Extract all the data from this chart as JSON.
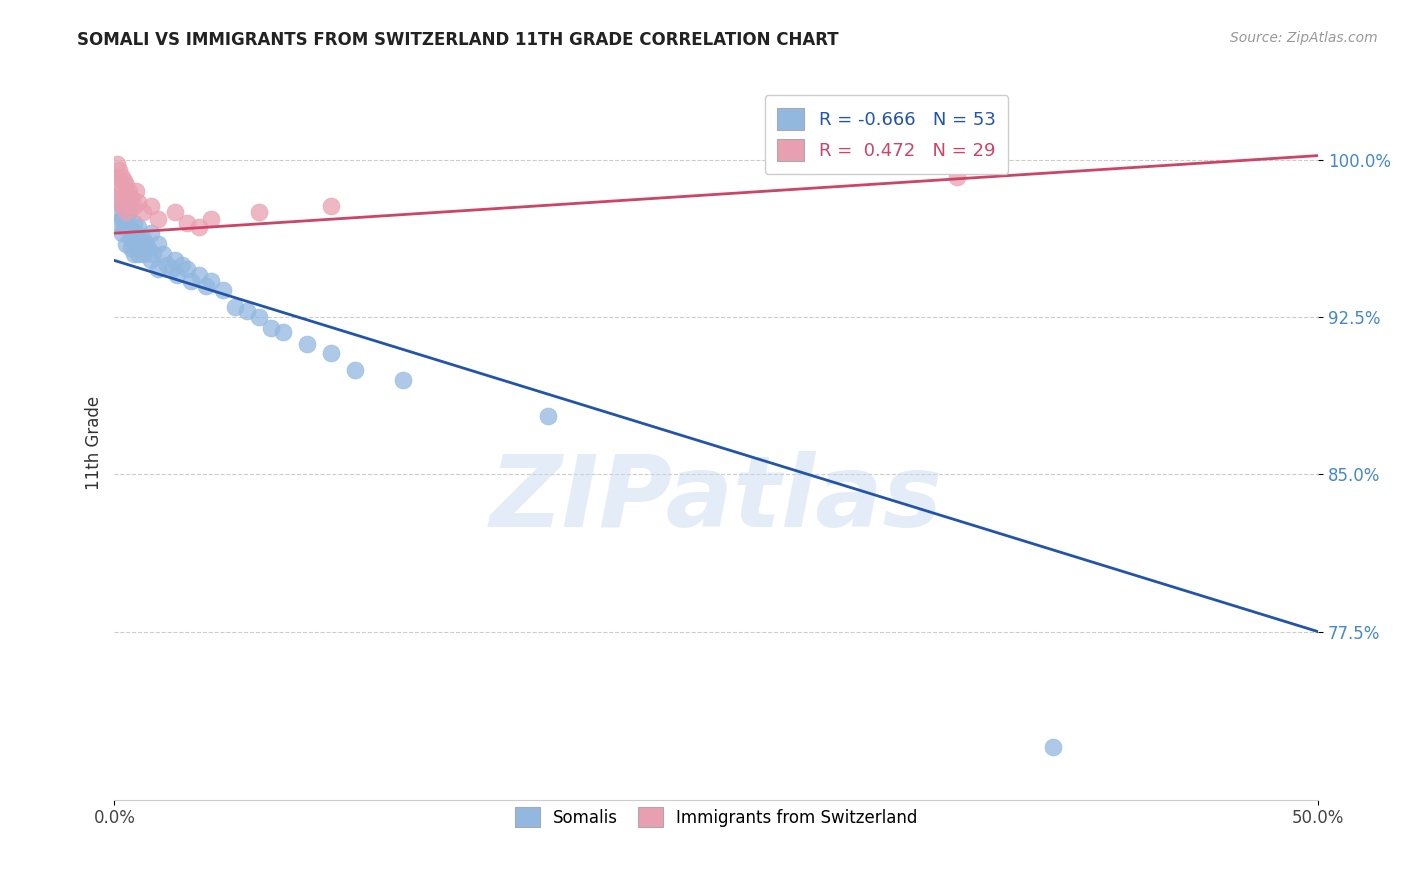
{
  "title": "SOMALI VS IMMIGRANTS FROM SWITZERLAND 11TH GRADE CORRELATION CHART",
  "source": "Source: ZipAtlas.com",
  "ylabel": "11th Grade",
  "xlim": [
    0.0,
    0.5
  ],
  "ylim": [
    0.695,
    1.035
  ],
  "yticks": [
    0.775,
    0.85,
    0.925,
    1.0
  ],
  "ytick_labels": [
    "77.5%",
    "85.0%",
    "92.5%",
    "100.0%"
  ],
  "xticks": [
    0.0,
    0.5
  ],
  "xtick_labels": [
    "0.0%",
    "50.0%"
  ],
  "blue_R": "-0.666",
  "blue_N": "53",
  "pink_R": "0.472",
  "pink_N": "29",
  "blue_color": "#92b8e0",
  "pink_color": "#e8a0b0",
  "blue_line_color": "#2255aa",
  "pink_line_color": "#cc4466",
  "ytick_color": "#4488cc",
  "background_color": "#ffffff",
  "grid_color": "#cccccc",
  "blue_line_x0": 0.0,
  "blue_line_y0": 0.952,
  "blue_line_x1": 0.5,
  "blue_line_y1": 0.775,
  "pink_line_x0": 0.0,
  "pink_line_y0": 0.965,
  "pink_line_x1": 0.5,
  "pink_line_y1": 1.002,
  "somali_points": [
    [
      0.001,
      0.97
    ],
    [
      0.002,
      0.98
    ],
    [
      0.002,
      0.975
    ],
    [
      0.003,
      0.972
    ],
    [
      0.003,
      0.965
    ],
    [
      0.004,
      0.98
    ],
    [
      0.004,
      0.975
    ],
    [
      0.004,
      0.968
    ],
    [
      0.005,
      0.972
    ],
    [
      0.005,
      0.96
    ],
    [
      0.006,
      0.975
    ],
    [
      0.006,
      0.968
    ],
    [
      0.007,
      0.962
    ],
    [
      0.007,
      0.958
    ],
    [
      0.008,
      0.97
    ],
    [
      0.008,
      0.955
    ],
    [
      0.009,
      0.965
    ],
    [
      0.009,
      0.96
    ],
    [
      0.01,
      0.968
    ],
    [
      0.01,
      0.955
    ],
    [
      0.011,
      0.958
    ],
    [
      0.012,
      0.962
    ],
    [
      0.012,
      0.955
    ],
    [
      0.013,
      0.96
    ],
    [
      0.014,
      0.958
    ],
    [
      0.015,
      0.965
    ],
    [
      0.015,
      0.952
    ],
    [
      0.016,
      0.955
    ],
    [
      0.018,
      0.96
    ],
    [
      0.018,
      0.948
    ],
    [
      0.02,
      0.955
    ],
    [
      0.022,
      0.95
    ],
    [
      0.024,
      0.948
    ],
    [
      0.025,
      0.952
    ],
    [
      0.026,
      0.945
    ],
    [
      0.028,
      0.95
    ],
    [
      0.03,
      0.948
    ],
    [
      0.032,
      0.942
    ],
    [
      0.035,
      0.945
    ],
    [
      0.038,
      0.94
    ],
    [
      0.04,
      0.942
    ],
    [
      0.045,
      0.938
    ],
    [
      0.05,
      0.93
    ],
    [
      0.055,
      0.928
    ],
    [
      0.06,
      0.925
    ],
    [
      0.065,
      0.92
    ],
    [
      0.07,
      0.918
    ],
    [
      0.08,
      0.912
    ],
    [
      0.09,
      0.908
    ],
    [
      0.1,
      0.9
    ],
    [
      0.12,
      0.895
    ],
    [
      0.18,
      0.878
    ],
    [
      0.39,
      0.72
    ]
  ],
  "swiss_points": [
    [
      0.001,
      0.998
    ],
    [
      0.001,
      0.992
    ],
    [
      0.002,
      0.995
    ],
    [
      0.002,
      0.988
    ],
    [
      0.002,
      0.982
    ],
    [
      0.003,
      0.992
    ],
    [
      0.003,
      0.985
    ],
    [
      0.003,
      0.978
    ],
    [
      0.004,
      0.99
    ],
    [
      0.004,
      0.982
    ],
    [
      0.005,
      0.988
    ],
    [
      0.005,
      0.975
    ],
    [
      0.006,
      0.985
    ],
    [
      0.006,
      0.978
    ],
    [
      0.007,
      0.982
    ],
    [
      0.008,
      0.978
    ],
    [
      0.009,
      0.985
    ],
    [
      0.01,
      0.98
    ],
    [
      0.012,
      0.975
    ],
    [
      0.015,
      0.978
    ],
    [
      0.018,
      0.972
    ],
    [
      0.025,
      0.975
    ],
    [
      0.03,
      0.97
    ],
    [
      0.035,
      0.968
    ],
    [
      0.04,
      0.972
    ],
    [
      0.06,
      0.975
    ],
    [
      0.09,
      0.978
    ],
    [
      0.34,
      0.998
    ],
    [
      0.35,
      0.992
    ]
  ],
  "watermark": "ZIPatlas"
}
